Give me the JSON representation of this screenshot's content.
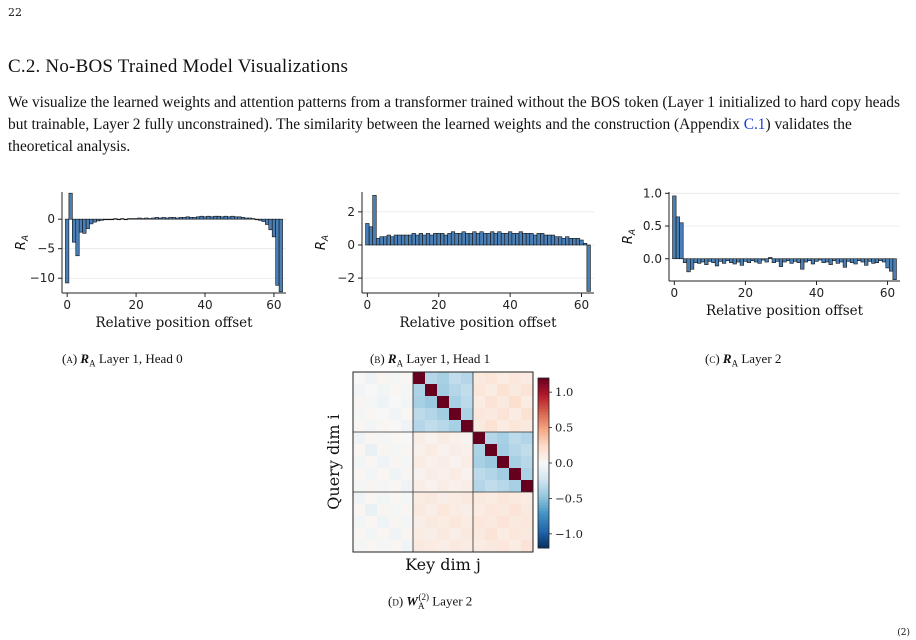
{
  "page_number": "22",
  "section_title": "C.2. No-BOS Trained Model Visualizations",
  "paragraph": {
    "text_a": "We visualize the learned weights and attention patterns from a transformer trained without the BOS token (Layer 1 initialized to hard copy heads but trainable, Layer 2 fully unconstrained). The similarity between the learned weights and the construction (Appendix ",
    "link": "C.1",
    "text_b": ") validates the theoretical analysis."
  },
  "corner_mark": "(2)",
  "chart_data": [
    {
      "id": "a",
      "type": "bar",
      "caption_label": "(a)",
      "caption_symbol": "R",
      "caption_sub": "A",
      "caption_text": "Layer 1, Head 0",
      "xlabel": "Relative position offset",
      "ylabel": "R",
      "ylabel_sub": "A",
      "xlim": [
        -1.5,
        63.5
      ],
      "ylim": [
        -12.5,
        4.6
      ],
      "xticks": [
        0,
        20,
        40,
        60
      ],
      "yticks": [
        0,
        -5,
        -10
      ],
      "ytick_labels": [
        "0",
        "−5",
        "−10"
      ],
      "gridlines": [
        0,
        -5,
        -10
      ],
      "x": [
        0,
        1,
        2,
        3,
        4,
        5,
        6,
        7,
        8,
        9,
        10,
        11,
        12,
        13,
        14,
        15,
        16,
        17,
        18,
        19,
        20,
        21,
        22,
        23,
        24,
        25,
        26,
        27,
        28,
        29,
        30,
        31,
        32,
        33,
        34,
        35,
        36,
        37,
        38,
        39,
        40,
        41,
        42,
        43,
        44,
        45,
        46,
        47,
        48,
        49,
        50,
        51,
        52,
        53,
        54,
        55,
        56,
        57,
        58,
        59,
        60,
        61,
        62
      ],
      "values": [
        -10.8,
        4.4,
        -3.9,
        -6.2,
        -2.2,
        -2.4,
        -1.6,
        -0.8,
        -0.5,
        -0.3,
        -0.2,
        -0.1,
        0.0,
        0.0,
        0.1,
        0.0,
        0.1,
        0.0,
        0.1,
        0.1,
        0.1,
        0.2,
        0.1,
        0.2,
        0.1,
        0.2,
        0.3,
        0.2,
        0.3,
        0.2,
        0.3,
        0.3,
        0.2,
        0.3,
        0.3,
        0.4,
        0.3,
        0.3,
        0.4,
        0.5,
        0.4,
        0.5,
        0.4,
        0.5,
        0.5,
        0.4,
        0.5,
        0.4,
        0.5,
        0.4,
        0.4,
        0.3,
        0.2,
        0.2,
        0.1,
        0.0,
        -0.2,
        -0.4,
        -0.9,
        -1.8,
        -3.0,
        -11.2,
        -12.3
      ]
    },
    {
      "id": "b",
      "type": "bar",
      "caption_label": "(b)",
      "caption_symbol": "R",
      "caption_sub": "A",
      "caption_text": "Layer 1, Head 1",
      "xlabel": "Relative position offset",
      "ylabel": "R",
      "ylabel_sub": "A",
      "xlim": [
        -1.5,
        63.5
      ],
      "ylim": [
        -2.9,
        3.2
      ],
      "xticks": [
        0,
        20,
        40,
        60
      ],
      "yticks": [
        2,
        0,
        -2
      ],
      "ytick_labels": [
        "2",
        "0",
        "−2"
      ],
      "gridlines": [
        2,
        0,
        -2
      ],
      "x": [
        0,
        1,
        2,
        3,
        4,
        5,
        6,
        7,
        8,
        9,
        10,
        11,
        12,
        13,
        14,
        15,
        16,
        17,
        18,
        19,
        20,
        21,
        22,
        23,
        24,
        25,
        26,
        27,
        28,
        29,
        30,
        31,
        32,
        33,
        34,
        35,
        36,
        37,
        38,
        39,
        40,
        41,
        42,
        43,
        44,
        45,
        46,
        47,
        48,
        49,
        50,
        51,
        52,
        53,
        54,
        55,
        56,
        57,
        58,
        59,
        60,
        61,
        62
      ],
      "values": [
        1.3,
        1.1,
        3.0,
        0.4,
        0.5,
        0.5,
        0.6,
        0.5,
        0.6,
        0.6,
        0.6,
        0.6,
        0.6,
        0.7,
        0.6,
        0.7,
        0.6,
        0.7,
        0.6,
        0.7,
        0.7,
        0.7,
        0.6,
        0.7,
        0.8,
        0.7,
        0.7,
        0.8,
        0.7,
        0.7,
        0.8,
        0.7,
        0.8,
        0.7,
        0.7,
        0.8,
        0.7,
        0.8,
        0.7,
        0.7,
        0.8,
        0.7,
        0.7,
        0.8,
        0.7,
        0.7,
        0.7,
        0.6,
        0.7,
        0.7,
        0.6,
        0.6,
        0.6,
        0.5,
        0.5,
        0.4,
        0.5,
        0.4,
        0.4,
        0.4,
        0.3,
        0.1,
        -2.8
      ]
    },
    {
      "id": "c",
      "type": "bar",
      "caption_label": "(c)",
      "caption_symbol": "R",
      "caption_sub": "A",
      "caption_text": "Layer 2",
      "xlabel": "Relative position offset",
      "ylabel": "R",
      "ylabel_sub": "A",
      "xlim": [
        -1.5,
        63.5
      ],
      "ylim": [
        -0.34,
        1.02
      ],
      "xticks": [
        0,
        20,
        40,
        60
      ],
      "yticks": [
        1.0,
        0.5,
        0.0
      ],
      "ytick_labels": [
        "1.0",
        "0.5",
        "0.0"
      ],
      "gridlines": [
        1.0,
        0.5,
        0.0
      ],
      "x": [
        0,
        1,
        2,
        3,
        4,
        5,
        6,
        7,
        8,
        9,
        10,
        11,
        12,
        13,
        14,
        15,
        16,
        17,
        18,
        19,
        20,
        21,
        22,
        23,
        24,
        25,
        26,
        27,
        28,
        29,
        30,
        31,
        32,
        33,
        34,
        35,
        36,
        37,
        38,
        39,
        40,
        41,
        42,
        43,
        44,
        45,
        46,
        47,
        48,
        49,
        50,
        51,
        52,
        53,
        54,
        55,
        56,
        57,
        58,
        59,
        60,
        61,
        62
      ],
      "values": [
        0.96,
        0.64,
        0.55,
        -0.06,
        -0.2,
        -0.16,
        -0.06,
        -0.07,
        -0.05,
        -0.09,
        -0.04,
        -0.06,
        -0.11,
        -0.04,
        -0.07,
        -0.03,
        -0.06,
        -0.08,
        -0.05,
        -0.1,
        -0.04,
        -0.06,
        -0.03,
        -0.05,
        -0.07,
        -0.02,
        -0.05,
        0.02,
        -0.06,
        -0.04,
        -0.12,
        -0.05,
        -0.03,
        -0.07,
        -0.04,
        -0.06,
        -0.16,
        -0.05,
        -0.03,
        -0.08,
        -0.04,
        -0.02,
        -0.06,
        -0.05,
        -0.09,
        -0.03,
        -0.07,
        -0.05,
        -0.13,
        -0.04,
        -0.06,
        -0.08,
        -0.03,
        -0.05,
        -0.1,
        -0.04,
        -0.07,
        -0.06,
        -0.03,
        -0.05,
        -0.14,
        -0.19,
        -0.32
      ]
    },
    {
      "id": "d",
      "type": "heatmap",
      "caption_label": "(d)",
      "caption_symbol": "W",
      "caption_sub": "A",
      "caption_sup": "(2)",
      "caption_text": "Layer 2",
      "xlabel": "Key dim j",
      "ylabel": "Query dim i",
      "size": 15,
      "block_size": 5,
      "colorbar_ticks": [
        1.0,
        0.5,
        0.0,
        -0.5,
        -1.0
      ],
      "colorbar_labels": [
        "1.0",
        "0.5",
        "0.0",
        "−0.5",
        "−1.0"
      ],
      "vlim": [
        -1.2,
        1.2
      ],
      "values": [
        [
          0.0,
          -0.05,
          0.03,
          -0.02,
          0.02,
          1.2,
          -0.35,
          -0.4,
          -0.3,
          -0.35,
          0.12,
          0.15,
          0.1,
          0.14,
          0.11
        ],
        [
          -0.04,
          0.0,
          -0.03,
          0.02,
          -0.02,
          -0.38,
          1.2,
          -0.42,
          -0.35,
          -0.3,
          0.15,
          0.1,
          0.18,
          0.12,
          0.16
        ],
        [
          0.03,
          -0.02,
          -0.06,
          0.0,
          -0.03,
          -0.4,
          -0.45,
          1.2,
          -0.4,
          -0.32,
          0.1,
          0.16,
          0.12,
          0.2,
          0.1
        ],
        [
          -0.02,
          0.02,
          0.0,
          -0.04,
          0.02,
          -0.32,
          -0.36,
          -0.42,
          1.2,
          -0.38,
          0.14,
          0.12,
          0.16,
          0.1,
          0.18
        ],
        [
          0.02,
          -0.03,
          0.02,
          0.0,
          -0.05,
          -0.35,
          -0.3,
          -0.34,
          -0.4,
          1.2,
          0.12,
          0.18,
          0.1,
          0.15,
          0.12
        ],
        [
          -0.05,
          0.03,
          -0.02,
          0.02,
          0.0,
          0.08,
          0.05,
          0.1,
          0.06,
          0.04,
          1.2,
          -0.35,
          -0.4,
          -0.32,
          -0.36
        ],
        [
          0.02,
          -0.08,
          0.03,
          -0.02,
          0.02,
          0.06,
          0.1,
          0.05,
          0.08,
          0.06,
          -0.38,
          1.2,
          -0.42,
          -0.35,
          -0.3
        ],
        [
          -0.03,
          0.02,
          -0.05,
          0.03,
          -0.02,
          0.1,
          0.06,
          0.08,
          0.05,
          0.09,
          -0.4,
          -0.45,
          1.2,
          -0.4,
          -0.34
        ],
        [
          0.02,
          -0.03,
          0.02,
          -0.06,
          0.03,
          0.05,
          0.08,
          0.06,
          0.1,
          0.05,
          -0.32,
          -0.36,
          -0.42,
          1.2,
          -0.38
        ],
        [
          -0.02,
          0.03,
          -0.02,
          0.02,
          -0.05,
          0.08,
          0.05,
          0.09,
          0.06,
          0.08,
          -0.35,
          -0.3,
          -0.34,
          -0.4,
          1.2
        ],
        [
          -0.05,
          0.02,
          -0.03,
          0.02,
          -0.02,
          0.1,
          0.12,
          0.08,
          0.1,
          0.12,
          0.12,
          0.1,
          0.14,
          0.12,
          0.1
        ],
        [
          0.02,
          -0.08,
          0.03,
          -0.02,
          0.02,
          0.12,
          0.08,
          0.14,
          0.1,
          0.08,
          0.1,
          0.14,
          0.12,
          0.16,
          0.12
        ],
        [
          -0.03,
          0.02,
          -0.06,
          0.03,
          -0.02,
          0.08,
          0.12,
          0.1,
          0.14,
          0.1,
          0.14,
          0.12,
          0.16,
          0.12,
          0.14
        ],
        [
          0.02,
          -0.03,
          0.02,
          -0.05,
          0.03,
          0.1,
          0.08,
          0.12,
          0.08,
          0.12,
          0.12,
          0.16,
          0.1,
          0.14,
          0.12
        ],
        [
          -0.02,
          0.02,
          -0.02,
          0.02,
          -0.04,
          0.12,
          0.1,
          0.08,
          0.12,
          0.1,
          0.1,
          0.12,
          0.14,
          0.1,
          0.16
        ]
      ]
    }
  ]
}
